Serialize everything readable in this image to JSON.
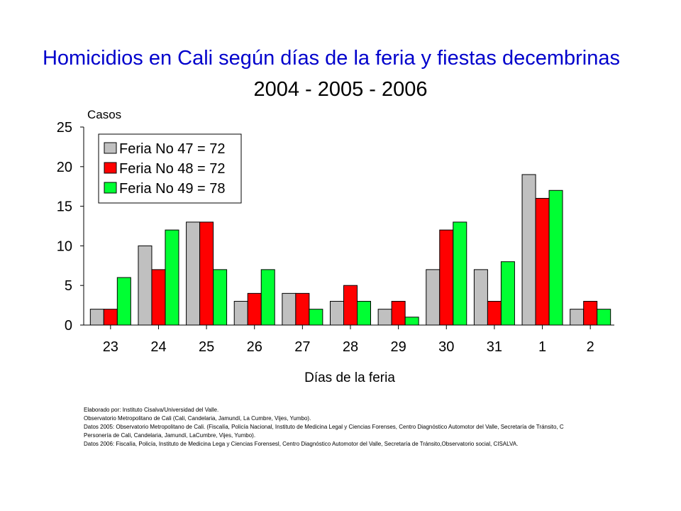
{
  "title": "Homicidios en Cali según días de la feria y fiestas decembrinas",
  "subtitle": "2004 - 2005 - 2006",
  "colors": {
    "title": "#0000cc"
  },
  "chart_data": {
    "type": "bar",
    "title": "Homicidios en Cali según días de la feria y fiestas decembrinas",
    "subtitle": "2004 - 2005 - 2006",
    "xlabel": "Días de la feria",
    "ylabel": "Casos",
    "ylim": [
      0,
      25
    ],
    "yticks": [
      0,
      5,
      10,
      15,
      20,
      25
    ],
    "grid": false,
    "legend_position": "top-left",
    "categories": [
      "23",
      "24",
      "25",
      "26",
      "27",
      "28",
      "29",
      "30",
      "31",
      "1",
      "2"
    ],
    "series": [
      {
        "name": "Feria No 47 = 72",
        "color": "#c0c0c0",
        "values": [
          2,
          10,
          13,
          3,
          4,
          3,
          2,
          7,
          7,
          19,
          2
        ]
      },
      {
        "name": "Feria No 48 = 72",
        "color": "#ff0000",
        "values": [
          2,
          7,
          13,
          4,
          4,
          5,
          3,
          12,
          3,
          16,
          3
        ]
      },
      {
        "name": "Feria No 49 = 78",
        "color": "#00ff33",
        "values": [
          6,
          12,
          7,
          7,
          2,
          3,
          1,
          13,
          8,
          17,
          2
        ]
      }
    ]
  },
  "notes": [
    "Elaborado por: Instituto Cisalva/Universidad del Valle.",
    "Observatorio Metropolitano de Cali (Cali, Candelaria, Jamundí, La Cumbre, Vijes, Yumbo).",
    "Datos 2005:  Observatorio Metropolitano de Cali.  (Fiscalía, Policía Nacional, Instituto de Medicina Legal y Ciencias Forenses, Centro Diagnóstico Automotor del Valle, Secretaría de Tránsito,  C",
    "Personería de Cali, Candelaria, Jamundí, LaCumbre, Vijes, Yumbo).",
    "Datos 2006: Fiscalía, Policía, Instituto de Medicina Lega y Ciencias Forensesl, Centro Diagnóstico Automotor del Valle, Secretaría de Tránsito,Observatorio social,  CISALVA."
  ]
}
